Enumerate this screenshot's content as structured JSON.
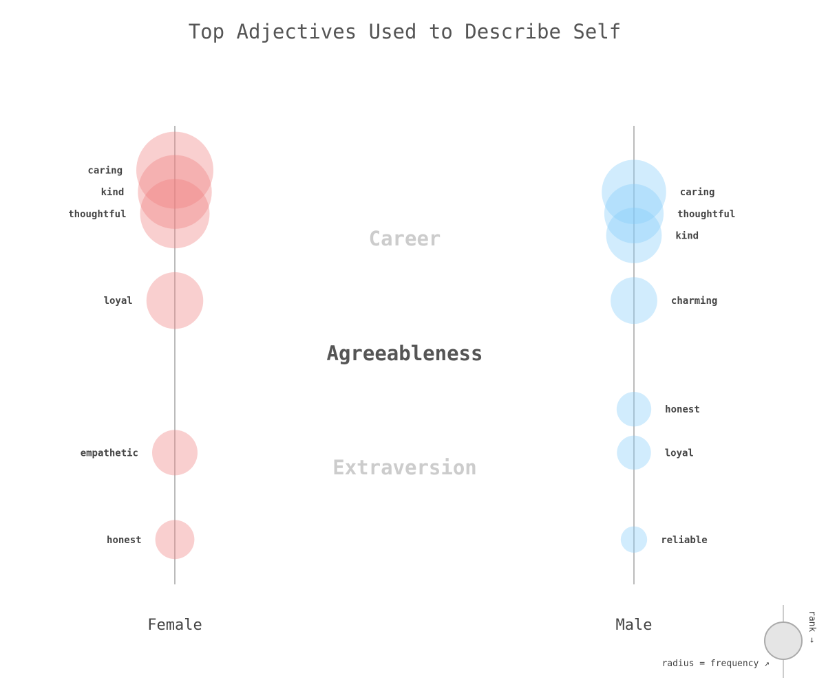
{
  "chart_data": {
    "type": "scatter",
    "title": "Top Adjectives Used to Describe Self",
    "categories": [
      {
        "label": "Career",
        "active": false
      },
      {
        "label": "Agreeableness",
        "active": true
      },
      {
        "label": "Extraversion",
        "active": false
      }
    ],
    "series": [
      {
        "name": "Female",
        "color": "#f08080",
        "points": [
          {
            "word": "caring",
            "rank": 1,
            "frequency": 1.0
          },
          {
            "word": "kind",
            "rank": 2,
            "frequency": 0.95
          },
          {
            "word": "thoughtful",
            "rank": 3,
            "frequency": 0.88
          },
          {
            "word": "loyal",
            "rank": 7,
            "frequency": 0.68
          },
          {
            "word": "empathetic",
            "rank": 14,
            "frequency": 0.5
          },
          {
            "word": "honest",
            "rank": 18,
            "frequency": 0.4
          }
        ]
      },
      {
        "name": "Male",
        "color": "#87cefa",
        "points": [
          {
            "word": "caring",
            "rank": 2,
            "frequency": 0.8
          },
          {
            "word": "thoughtful",
            "rank": 3,
            "frequency": 0.72
          },
          {
            "word": "kind",
            "rank": 4,
            "frequency": 0.66
          },
          {
            "word": "charming",
            "rank": 7,
            "frequency": 0.52
          },
          {
            "word": "honest",
            "rank": 12,
            "frequency": 0.33
          },
          {
            "word": "loyal",
            "rank": 14,
            "frequency": 0.32
          },
          {
            "word": "reliable",
            "rank": 18,
            "frequency": 0.2
          }
        ]
      }
    ],
    "legend": {
      "x_label": "radius = frequency ↗",
      "y_label": "rank →",
      "placement": "bottom-right"
    }
  }
}
